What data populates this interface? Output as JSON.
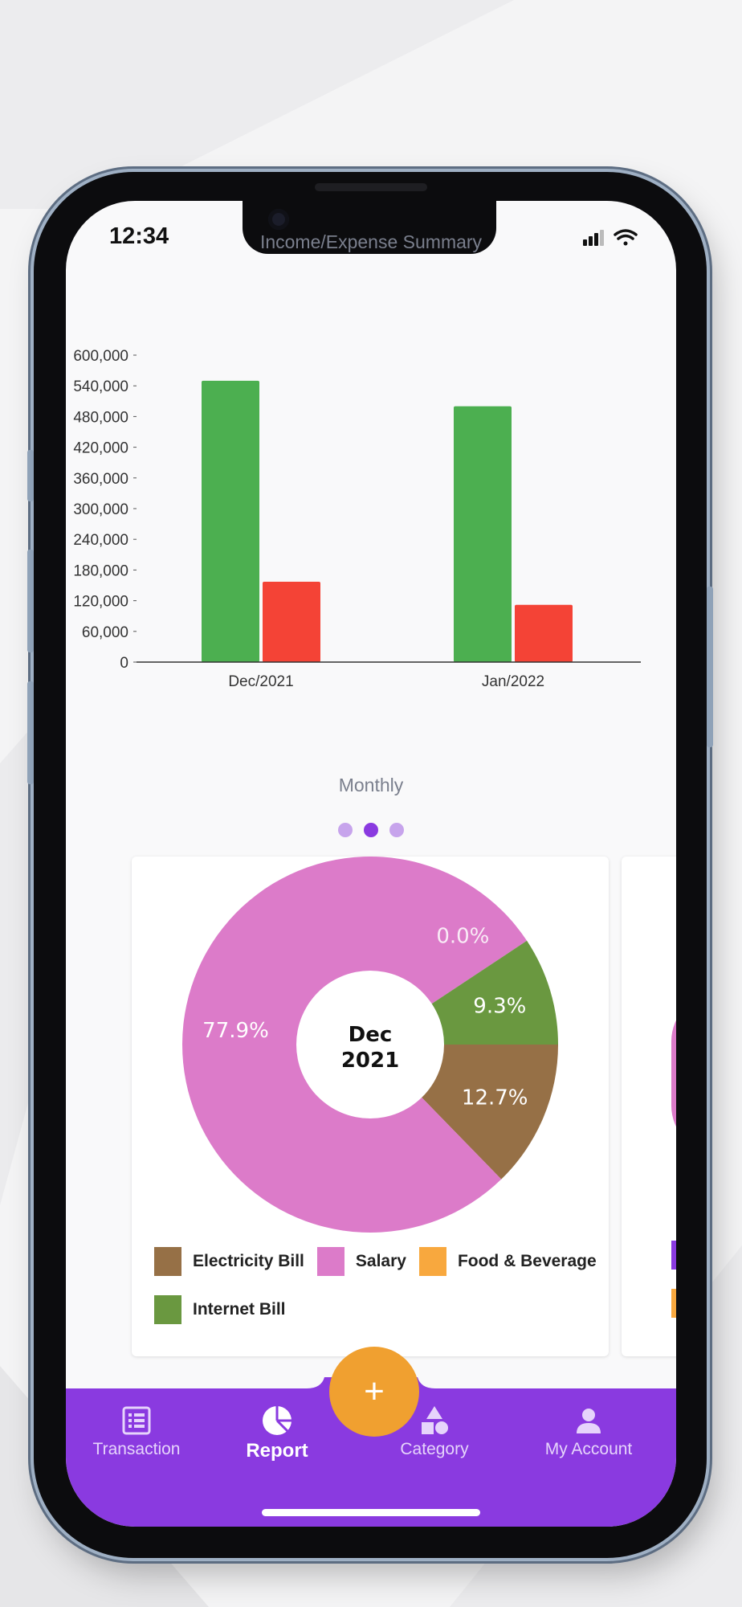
{
  "status": {
    "time": "12:34"
  },
  "summary_chart": {
    "title": "Income/Expense Summary",
    "footer": "Monthly",
    "colors": {
      "income": "#4caf50",
      "expense": "#f44336"
    }
  },
  "pager": {
    "count": 3,
    "active_index": 1
  },
  "pie_card": {
    "center_line1": "Dec",
    "center_line2": "2021",
    "legend": [
      {
        "label": "Electricity Bill",
        "color": "#967046"
      },
      {
        "label": "Salary",
        "color": "#dc7bc9"
      },
      {
        "label": "Food & Beverage",
        "color": "#f8a83e"
      },
      {
        "label": "Internet Bill",
        "color": "#6a9840"
      }
    ]
  },
  "fab": {
    "label": "+"
  },
  "nav": {
    "items": [
      {
        "label": "Transaction",
        "icon": "list-icon"
      },
      {
        "label": "Report",
        "icon": "pie-chart-icon",
        "active": true
      },
      {
        "label": "Category",
        "icon": "shapes-icon"
      },
      {
        "label": "My Account",
        "icon": "person-icon"
      }
    ]
  },
  "chart_data": [
    {
      "type": "bar",
      "title": "Income/Expense Summary",
      "xlabel": "Monthly",
      "categories": [
        "Dec/2021",
        "Jan/2022"
      ],
      "series": [
        {
          "values": [
            550000,
            500000
          ],
          "color": "#4caf50"
        },
        {
          "values": [
            157000,
            112000
          ],
          "color": "#f44336"
        }
      ],
      "ylim": [
        0,
        600000
      ],
      "yticks": [
        "0",
        "60,000",
        "120,000",
        "180,000",
        "240,000",
        "300,000",
        "360,000",
        "420,000",
        "480,000",
        "540,000",
        "600,000"
      ],
      "ytick_values": [
        0,
        60000,
        120000,
        180000,
        240000,
        300000,
        360000,
        420000,
        480000,
        540000,
        600000
      ]
    },
    {
      "type": "pie",
      "title": "Dec 2021",
      "slices": [
        {
          "label": "Electricity Bill",
          "value": 12.7,
          "text": "12.7%",
          "color": "#967046"
        },
        {
          "label": "Salary",
          "value": 77.9,
          "text": "77.9%",
          "color": "#dc7bc9"
        },
        {
          "label": "Food & Beverage",
          "value": 0.0,
          "text": "0.0%",
          "color": "#f8a83e"
        },
        {
          "label": "Internet Bill",
          "value": 9.3,
          "text": "9.3%",
          "color": "#6a9840"
        }
      ]
    }
  ]
}
